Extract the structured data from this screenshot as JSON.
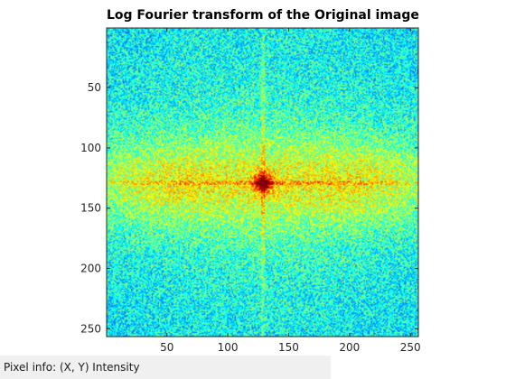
{
  "figure": {
    "title": "Log Fourier transform of the Original image"
  },
  "axes": {
    "xlim": [
      0.5,
      256.5
    ],
    "ylim": [
      0.5,
      256.5
    ],
    "x_ticks": [
      50,
      100,
      150,
      200,
      250
    ],
    "y_ticks": [
      50,
      100,
      150,
      200,
      250
    ],
    "colormap": "jet",
    "grid": false,
    "spectrum_center": [
      129,
      129
    ]
  },
  "status_bar": {
    "pixel_info_label": "Pixel info:",
    "pixel_info_fields": "(X, Y)  Intensity"
  }
}
